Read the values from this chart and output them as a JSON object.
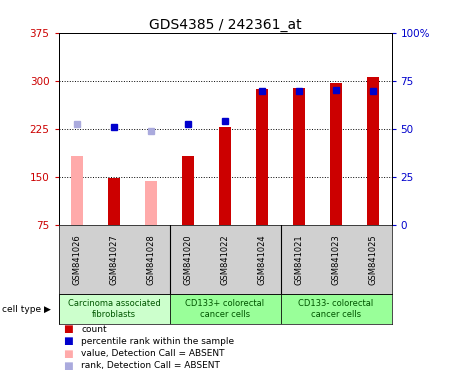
{
  "title": "GDS4385 / 242361_at",
  "samples": [
    "GSM841026",
    "GSM841027",
    "GSM841028",
    "GSM841020",
    "GSM841022",
    "GSM841024",
    "GSM841021",
    "GSM841023",
    "GSM841025"
  ],
  "count_values": [
    null,
    148,
    null,
    183,
    228,
    287,
    289,
    297,
    306
  ],
  "count_absent": [
    183,
    null,
    143,
    null,
    null,
    null,
    null,
    null,
    null
  ],
  "percentile_values": [
    null,
    228,
    null,
    233,
    237,
    284,
    284,
    285,
    284
  ],
  "percentile_absent": [
    232,
    null,
    222,
    null,
    null,
    null,
    null,
    null,
    null
  ],
  "ylim_left": [
    75,
    375
  ],
  "ylim_right": [
    0,
    100
  ],
  "yticks_left": [
    75,
    150,
    225,
    300,
    375
  ],
  "yticks_right": [
    0,
    25,
    50,
    75,
    100
  ],
  "ytick_labels_left": [
    "75",
    "150",
    "225",
    "300",
    "375"
  ],
  "ytick_labels_right": [
    "0",
    "25",
    "50",
    "75",
    "100%"
  ],
  "bar_width": 0.35,
  "count_color": "#cc0000",
  "count_absent_color": "#ffaaaa",
  "percentile_color": "#0000cc",
  "percentile_absent_color": "#aaaadd",
  "left_axis_color": "#cc0000",
  "right_axis_color": "#0000cc",
  "group_dividers": [
    2.5,
    5.5
  ],
  "group_info": [
    [
      0,
      2,
      "#ccffcc",
      "Carcinoma associated\nfibroblasts"
    ],
    [
      3,
      5,
      "#99ff99",
      "CD133+ colorectal\ncancer cells"
    ],
    [
      6,
      8,
      "#99ff99",
      "CD133- colorectal\ncancer cells"
    ]
  ],
  "legend_items": [
    {
      "label": "count",
      "color": "#cc0000"
    },
    {
      "label": "percentile rank within the sample",
      "color": "#0000cc"
    },
    {
      "label": "value, Detection Call = ABSENT",
      "color": "#ffaaaa"
    },
    {
      "label": "rank, Detection Call = ABSENT",
      "color": "#aaaadd"
    }
  ],
  "cell_type_label": "cell type"
}
